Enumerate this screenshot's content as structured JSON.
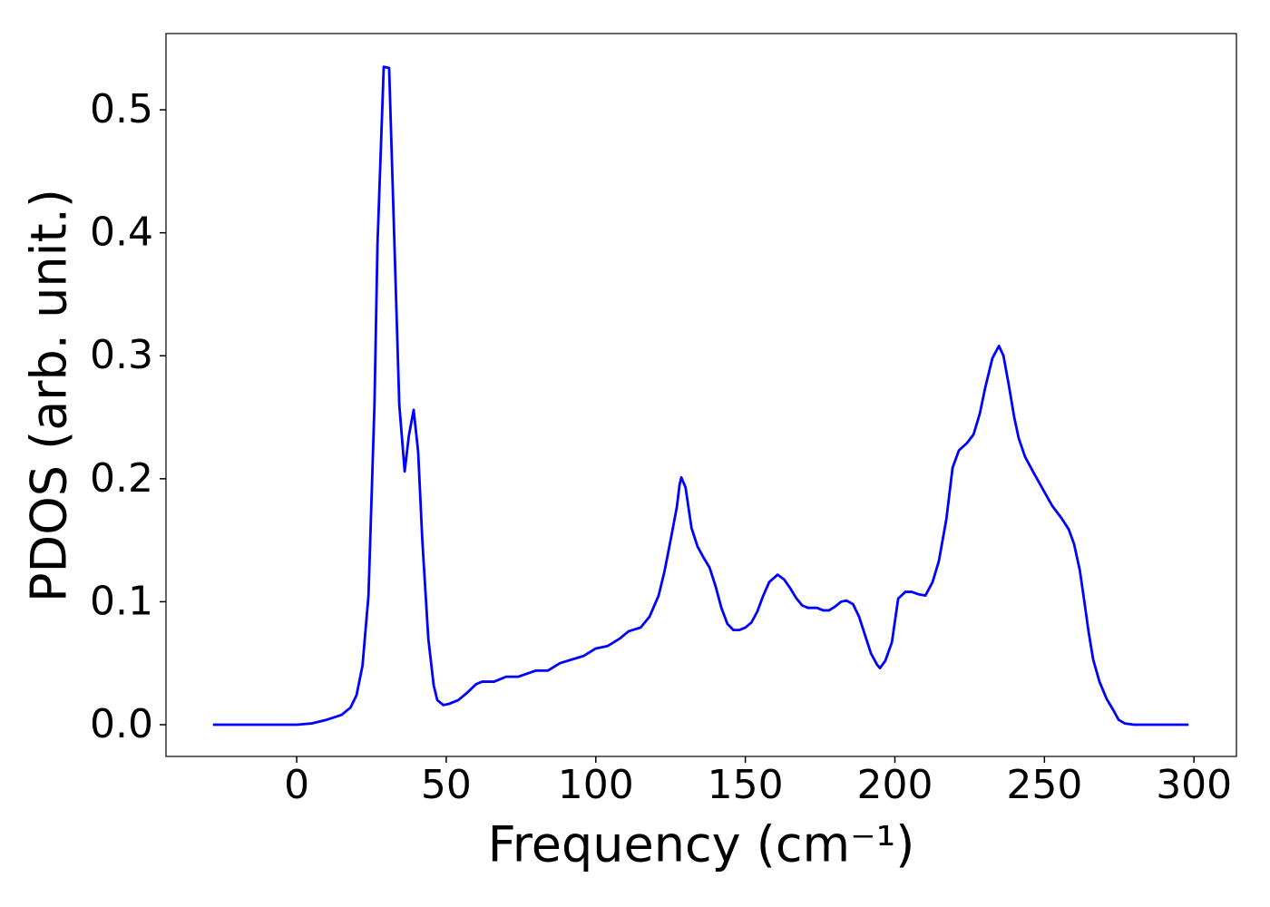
{
  "chart_data": {
    "type": "line",
    "xlabel": "Frequency (cm⁻¹)",
    "ylabel": "PDOS (arb. unit.)",
    "xlim": [
      -43.7,
      314.2
    ],
    "ylim": [
      -0.0258,
      0.562
    ],
    "xticks": [
      0,
      50,
      100,
      150,
      200,
      250,
      300
    ],
    "yticks": [
      {
        "value": 0,
        "label": "0.0"
      },
      0.1,
      0.2,
      0.3,
      0.4,
      0.5
    ],
    "grid": false,
    "series": [
      {
        "color": "#0000ff",
        "x": [
          -28,
          0,
          5,
          10,
          15,
          18,
          20,
          22,
          24,
          26,
          27,
          29.1,
          30.9,
          34.3,
          36.1,
          37.5,
          39.1,
          40.6,
          42,
          44,
          45.8,
          47,
          49,
          51,
          54,
          57,
          60,
          62,
          66,
          70,
          74,
          80,
          84,
          88,
          92,
          96,
          100,
          104,
          108,
          111,
          115,
          118,
          121,
          123,
          125,
          127.1,
          128,
          128.6,
          130,
          132,
          134,
          136,
          138,
          140,
          142,
          144,
          146,
          148,
          150,
          152,
          154,
          156,
          158,
          160.8,
          163,
          165,
          167,
          169,
          171,
          174,
          176,
          178,
          180,
          182,
          183.8,
          186,
          188,
          190,
          192,
          194,
          195,
          196.8,
          199,
          201.1,
          203.5,
          205.6,
          208,
          210.2,
          212.6,
          214.7,
          217.2,
          219.3,
          221.4,
          224.1,
          226.3,
          228.4,
          230.2,
          232.6,
          234.8,
          236.3,
          238.1,
          239.9,
          241.4,
          243.5,
          246.6,
          249.6,
          252.6,
          255.7,
          258.1,
          259.9,
          261.8,
          263.3,
          264.8,
          266.3,
          268.4,
          270.8,
          273,
          274.8,
          276.9,
          280,
          298.2
        ],
        "values": [
          0,
          0,
          0.001,
          0.004,
          0.008,
          0.014,
          0.024,
          0.048,
          0.105,
          0.26,
          0.39,
          0.535,
          0.534,
          0.26,
          0.206,
          0.235,
          0.256,
          0.222,
          0.15,
          0.07,
          0.032,
          0.02,
          0.016,
          0.017,
          0.02,
          0.026,
          0.033,
          0.035,
          0.035,
          0.039,
          0.039,
          0.044,
          0.044,
          0.05,
          0.053,
          0.056,
          0.062,
          0.064,
          0.07,
          0.076,
          0.079,
          0.088,
          0.105,
          0.125,
          0.15,
          0.177,
          0.195,
          0.201,
          0.193,
          0.16,
          0.145,
          0.136,
          0.128,
          0.113,
          0.095,
          0.082,
          0.077,
          0.077,
          0.079,
          0.083,
          0.092,
          0.105,
          0.116,
          0.122,
          0.118,
          0.111,
          0.103,
          0.097,
          0.095,
          0.095,
          0.093,
          0.093,
          0.096,
          0.1,
          0.101,
          0.098,
          0.088,
          0.073,
          0.058,
          0.049,
          0.046,
          0.052,
          0.067,
          0.1025,
          0.108,
          0.108,
          0.106,
          0.105,
          0.116,
          0.133,
          0.167,
          0.209,
          0.223,
          0.229,
          0.236,
          0.253,
          0.274,
          0.298,
          0.308,
          0.3,
          0.276,
          0.25,
          0.233,
          0.218,
          0.204,
          0.191,
          0.178,
          0.168,
          0.159,
          0.147,
          0.126,
          0.101,
          0.075,
          0.053,
          0.035,
          0.021,
          0.012,
          0.004,
          0.001,
          0,
          0
        ]
      }
    ]
  }
}
